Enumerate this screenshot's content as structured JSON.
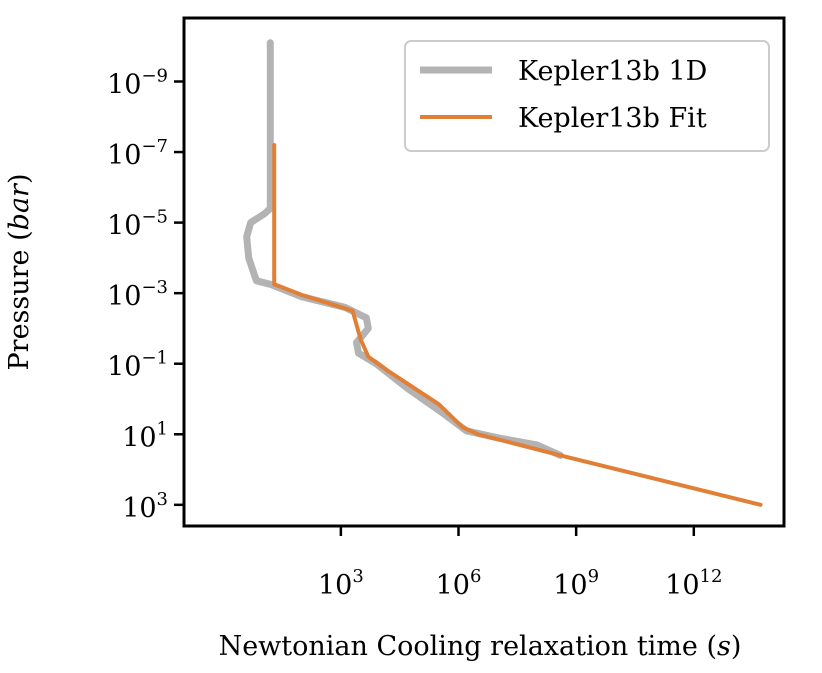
{
  "chart_data": {
    "type": "line",
    "x_scale": "log",
    "y_scale": "log",
    "y_inverted": true,
    "xlabel": "Newtonian Cooling relaxation time ",
    "xlabel_unit": "s",
    "ylabel": "Pressure ",
    "ylabel_unit": "bar",
    "xlim_exp": [
      -1,
      14.3
    ],
    "ylim_exp": [
      -10.8,
      3.6
    ],
    "x_ticks": [
      {
        "exp": 3,
        "base": "10",
        "sup": "3"
      },
      {
        "exp": 6,
        "base": "10",
        "sup": "6"
      },
      {
        "exp": 9,
        "base": "10",
        "sup": "9"
      },
      {
        "exp": 12,
        "base": "10",
        "sup": "12"
      }
    ],
    "y_ticks": [
      {
        "exp": -9,
        "base": "10",
        "sup": "−9"
      },
      {
        "exp": -7,
        "base": "10",
        "sup": "−7"
      },
      {
        "exp": -5,
        "base": "10",
        "sup": "−5"
      },
      {
        "exp": -3,
        "base": "10",
        "sup": "−3"
      },
      {
        "exp": -1,
        "base": "10",
        "sup": "−1"
      },
      {
        "exp": 1,
        "base": "10",
        "sup": "1"
      },
      {
        "exp": 3,
        "base": "10",
        "sup": "3"
      }
    ],
    "legend_position": "top-right",
    "series": [
      {
        "name": "Kepler13b 1D",
        "color": "#b3b3b3",
        "log10_x": [
          1.2,
          1.2,
          1.2,
          1.2,
          1.05,
          0.7,
          0.6,
          0.65,
          0.8,
          0.85,
          1.2,
          2.0,
          3.1,
          3.65,
          3.7,
          3.4,
          3.45,
          3.9,
          4.7,
          5.6,
          6.2,
          7.0,
          8.0,
          8.6
        ],
        "log10_p": [
          -10.1,
          -9.5,
          -7.0,
          -5.4,
          -5.25,
          -5.0,
          -4.6,
          -4.0,
          -3.5,
          -3.35,
          -3.25,
          -2.9,
          -2.6,
          -2.3,
          -2.0,
          -1.6,
          -1.3,
          -1.0,
          -0.3,
          0.4,
          0.9,
          1.1,
          1.3,
          1.6
        ]
      },
      {
        "name": "Kepler13b Fit",
        "color": "#e07f35",
        "log10_x": [
          1.3,
          1.3,
          1.3,
          2.0,
          3.3,
          3.5,
          3.7,
          4.2,
          5.5,
          6.1,
          6.5,
          8.6,
          13.7
        ],
        "log10_p": [
          -7.2,
          -5.0,
          -3.25,
          -2.95,
          -2.5,
          -1.7,
          -1.2,
          -0.8,
          0.15,
          0.8,
          1.0,
          1.6,
          3.0
        ]
      }
    ]
  }
}
